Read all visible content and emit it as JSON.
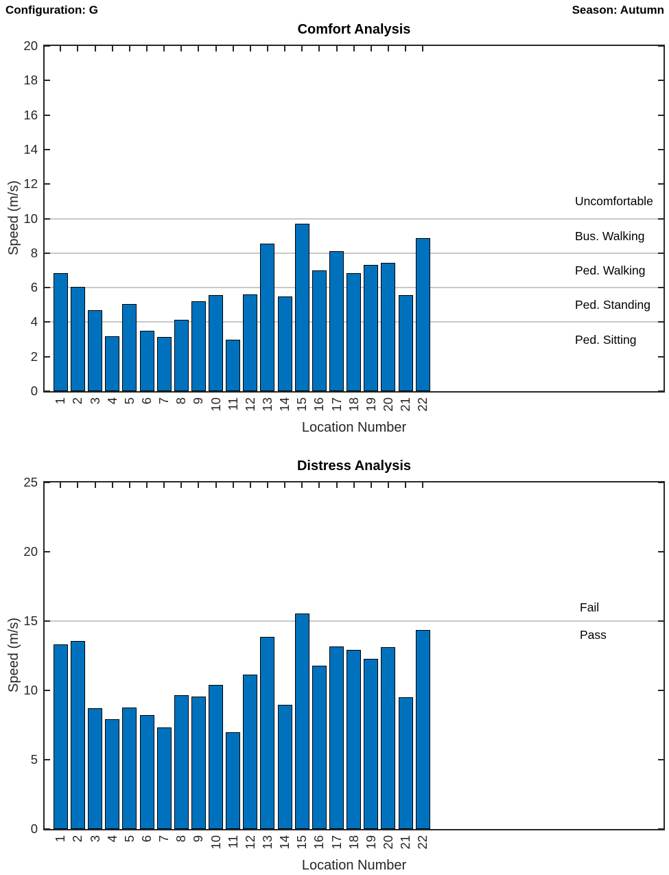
{
  "header": {
    "configuration": "Configuration: G",
    "season": "Season: Autumn"
  },
  "chart_data": [
    {
      "type": "bar",
      "title": "Comfort Analysis",
      "xlabel": "Location Number",
      "ylabel": "Speed (m/s)",
      "categories": [
        "1",
        "2",
        "3",
        "4",
        "5",
        "6",
        "7",
        "8",
        "9",
        "10",
        "11",
        "12",
        "13",
        "14",
        "15",
        "16",
        "17",
        "18",
        "19",
        "20",
        "21",
        "22"
      ],
      "values": [
        6.85,
        6.05,
        4.7,
        3.2,
        5.05,
        3.5,
        3.15,
        4.15,
        5.2,
        5.55,
        3.0,
        5.6,
        8.55,
        5.5,
        9.7,
        7.0,
        8.1,
        6.85,
        7.3,
        7.45,
        5.55,
        8.85
      ],
      "ylim": [
        0,
        20
      ],
      "yticks": [
        0,
        2,
        4,
        6,
        8,
        10,
        12,
        14,
        16,
        18,
        20
      ],
      "legend": "none",
      "grid": "off",
      "threshold_lines": [
        4,
        6,
        8,
        10
      ],
      "threshold_labels": [
        {
          "text": "Uncomfortable",
          "y": 11
        },
        {
          "text": "Bus. Walking",
          "y": 9
        },
        {
          "text": "Ped. Walking",
          "y": 7
        },
        {
          "text": "Ped. Standing",
          "y": 5
        },
        {
          "text": "Ped. Sitting",
          "y": 3
        }
      ],
      "bar_color": "#0072BD",
      "bar_edge_color": "#000000",
      "threshold_line_color": "#C8C8C8",
      "axis_color": "#262626"
    },
    {
      "type": "bar",
      "title": "Distress Analysis",
      "xlabel": "Location Number",
      "ylabel": "Speed (m/s)",
      "categories": [
        "1",
        "2",
        "3",
        "4",
        "5",
        "6",
        "7",
        "8",
        "9",
        "10",
        "11",
        "12",
        "13",
        "14",
        "15",
        "16",
        "17",
        "18",
        "19",
        "20",
        "21",
        "22"
      ],
      "values": [
        13.3,
        13.55,
        8.7,
        7.9,
        8.75,
        8.2,
        7.35,
        9.65,
        9.55,
        10.4,
        7.0,
        11.15,
        13.85,
        8.95,
        15.55,
        11.8,
        13.15,
        12.9,
        12.3,
        13.1,
        9.5,
        14.35
      ],
      "ylim": [
        0,
        25
      ],
      "yticks": [
        0,
        5,
        10,
        15,
        20,
        25
      ],
      "legend": "none",
      "grid": "off",
      "threshold_lines": [
        15
      ],
      "threshold_labels": [
        {
          "text": "Fail",
          "y": 16
        },
        {
          "text": "Pass",
          "y": 14
        }
      ],
      "bar_color": "#0072BD",
      "bar_edge_color": "#000000",
      "threshold_line_color": "#C8C8C8",
      "axis_color": "#262626"
    }
  ]
}
